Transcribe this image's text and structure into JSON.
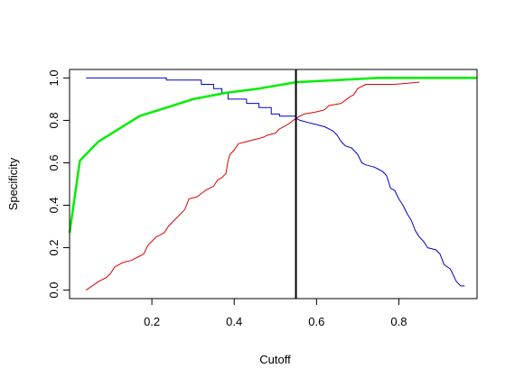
{
  "chart_data": {
    "type": "line",
    "xlabel": "Cutoff",
    "ylabel": "Specificity",
    "xlim": [
      0.0,
      0.99
    ],
    "ylim": [
      -0.04,
      1.04
    ],
    "xticks": [
      0.2,
      0.4,
      0.6,
      0.8
    ],
    "yticks": [
      0.0,
      0.2,
      0.4,
      0.6,
      0.8,
      1.0
    ],
    "grid": false,
    "series": [
      {
        "color": "#0000cc",
        "width": 1,
        "points": [
          [
            0.04,
            1.0
          ],
          [
            0.235,
            1.0
          ],
          [
            0.235,
            0.99
          ],
          [
            0.32,
            0.99
          ],
          [
            0.32,
            0.97
          ],
          [
            0.35,
            0.97
          ],
          [
            0.35,
            0.95
          ],
          [
            0.37,
            0.95
          ],
          [
            0.37,
            0.93
          ],
          [
            0.385,
            0.93
          ],
          [
            0.385,
            0.9
          ],
          [
            0.43,
            0.9
          ],
          [
            0.43,
            0.88
          ],
          [
            0.46,
            0.88
          ],
          [
            0.46,
            0.86
          ],
          [
            0.49,
            0.86
          ],
          [
            0.49,
            0.83
          ],
          [
            0.51,
            0.83
          ],
          [
            0.51,
            0.82
          ],
          [
            0.55,
            0.82
          ],
          [
            0.55,
            0.81
          ],
          [
            0.56,
            0.8
          ],
          [
            0.58,
            0.79
          ],
          [
            0.6,
            0.78
          ],
          [
            0.62,
            0.77
          ],
          [
            0.64,
            0.75
          ],
          [
            0.65,
            0.73
          ],
          [
            0.66,
            0.7
          ],
          [
            0.67,
            0.68
          ],
          [
            0.685,
            0.67
          ],
          [
            0.69,
            0.66
          ],
          [
            0.7,
            0.64
          ],
          [
            0.71,
            0.6
          ],
          [
            0.72,
            0.59
          ],
          [
            0.74,
            0.58
          ],
          [
            0.75,
            0.57
          ],
          [
            0.76,
            0.56
          ],
          [
            0.77,
            0.54
          ],
          [
            0.78,
            0.48
          ],
          [
            0.79,
            0.47
          ],
          [
            0.8,
            0.43
          ],
          [
            0.81,
            0.4
          ],
          [
            0.82,
            0.36
          ],
          [
            0.83,
            0.33
          ],
          [
            0.84,
            0.28
          ],
          [
            0.85,
            0.25
          ],
          [
            0.86,
            0.23
          ],
          [
            0.87,
            0.2
          ],
          [
            0.89,
            0.19
          ],
          [
            0.9,
            0.17
          ],
          [
            0.91,
            0.12
          ],
          [
            0.925,
            0.1
          ],
          [
            0.94,
            0.04
          ],
          [
            0.95,
            0.02
          ],
          [
            0.96,
            0.02
          ]
        ]
      },
      {
        "color": "#dd0000",
        "width": 1,
        "points": [
          [
            0.04,
            0.0
          ],
          [
            0.055,
            0.02
          ],
          [
            0.07,
            0.04
          ],
          [
            0.09,
            0.06
          ],
          [
            0.1,
            0.08
          ],
          [
            0.11,
            0.11
          ],
          [
            0.13,
            0.13
          ],
          [
            0.15,
            0.14
          ],
          [
            0.17,
            0.16
          ],
          [
            0.18,
            0.17
          ],
          [
            0.19,
            0.21
          ],
          [
            0.2,
            0.23
          ],
          [
            0.21,
            0.25
          ],
          [
            0.23,
            0.27
          ],
          [
            0.24,
            0.3
          ],
          [
            0.26,
            0.34
          ],
          [
            0.28,
            0.38
          ],
          [
            0.29,
            0.43
          ],
          [
            0.31,
            0.44
          ],
          [
            0.33,
            0.47
          ],
          [
            0.35,
            0.49
          ],
          [
            0.36,
            0.52
          ],
          [
            0.37,
            0.53
          ],
          [
            0.38,
            0.55
          ],
          [
            0.385,
            0.61
          ],
          [
            0.39,
            0.64
          ],
          [
            0.4,
            0.66
          ],
          [
            0.41,
            0.69
          ],
          [
            0.43,
            0.7
          ],
          [
            0.45,
            0.71
          ],
          [
            0.47,
            0.72
          ],
          [
            0.48,
            0.73
          ],
          [
            0.5,
            0.74
          ],
          [
            0.51,
            0.76
          ],
          [
            0.53,
            0.78
          ],
          [
            0.55,
            0.81
          ],
          [
            0.57,
            0.83
          ],
          [
            0.6,
            0.84
          ],
          [
            0.62,
            0.85
          ],
          [
            0.63,
            0.87
          ],
          [
            0.66,
            0.88
          ],
          [
            0.68,
            0.91
          ],
          [
            0.69,
            0.92
          ],
          [
            0.7,
            0.95
          ],
          [
            0.72,
            0.97
          ],
          [
            0.79,
            0.97
          ],
          [
            0.85,
            0.98
          ]
        ]
      },
      {
        "color": "#00ee00",
        "width": 2.5,
        "points": [
          [
            0.0,
            0.27
          ],
          [
            0.025,
            0.61
          ],
          [
            0.07,
            0.7
          ],
          [
            0.17,
            0.82
          ],
          [
            0.3,
            0.9
          ],
          [
            0.38,
            0.93
          ],
          [
            0.46,
            0.95
          ],
          [
            0.55,
            0.98
          ],
          [
            0.65,
            0.99
          ],
          [
            0.75,
            1.0
          ],
          [
            0.99,
            1.0
          ]
        ]
      }
    ],
    "vline": {
      "x": 0.55,
      "color": "#000000",
      "width": 2
    }
  }
}
